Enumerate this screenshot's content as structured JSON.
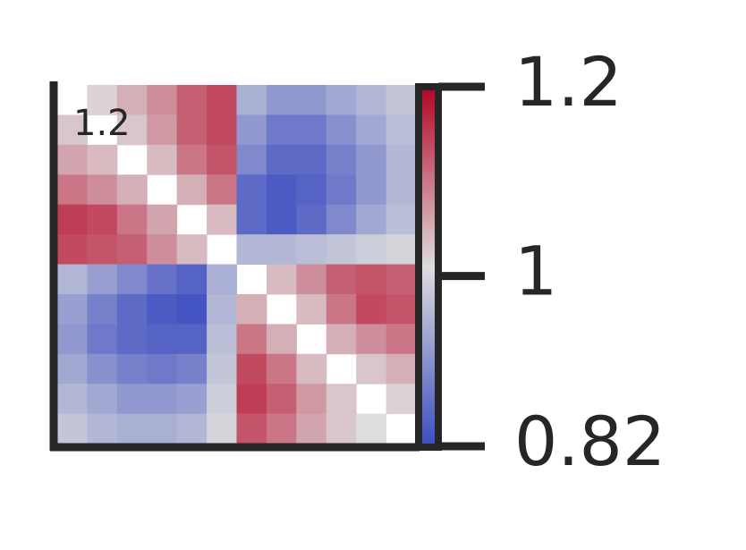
{
  "chart_data": {
    "type": "heatmap",
    "annotation": "1.2",
    "values": [
      [
        null,
        1.02,
        1.05,
        1.08,
        1.12,
        1.14,
        0.95,
        0.92,
        0.92,
        0.94,
        0.96,
        0.98
      ],
      [
        1.03,
        null,
        1.03,
        1.07,
        1.12,
        1.14,
        0.92,
        0.88,
        0.88,
        0.91,
        0.94,
        0.97
      ],
      [
        1.06,
        1.04,
        null,
        1.04,
        1.1,
        1.13,
        0.9,
        0.86,
        0.86,
        0.89,
        0.92,
        0.96
      ],
      [
        1.1,
        1.08,
        1.05,
        null,
        1.05,
        1.1,
        0.86,
        0.84,
        0.85,
        0.88,
        0.92,
        0.96
      ],
      [
        1.15,
        1.14,
        1.1,
        1.06,
        null,
        1.04,
        0.86,
        0.84,
        0.86,
        0.9,
        0.94,
        0.97
      ],
      [
        1.14,
        1.13,
        1.12,
        1.08,
        1.04,
        null,
        0.96,
        0.96,
        0.97,
        0.98,
        0.99,
        1.0
      ],
      [
        0.96,
        0.93,
        0.9,
        0.87,
        0.85,
        0.95,
        null,
        1.04,
        1.08,
        1.12,
        1.13,
        1.12
      ],
      [
        0.93,
        0.89,
        0.86,
        0.84,
        0.83,
        0.96,
        1.05,
        null,
        1.04,
        1.1,
        1.14,
        1.13
      ],
      [
        0.92,
        0.88,
        0.86,
        0.85,
        0.85,
        0.97,
        1.1,
        1.05,
        null,
        1.05,
        1.08,
        1.1
      ],
      [
        0.94,
        0.91,
        0.89,
        0.88,
        0.89,
        0.98,
        1.14,
        1.1,
        1.04,
        null,
        1.03,
        1.05
      ],
      [
        0.96,
        0.94,
        0.92,
        0.92,
        0.93,
        0.99,
        1.15,
        1.12,
        1.07,
        1.03,
        null,
        1.02
      ],
      [
        0.98,
        0.96,
        0.95,
        0.95,
        0.96,
        1.0,
        1.13,
        1.1,
        1.06,
        1.03,
        1.01,
        null
      ]
    ],
    "colormap": [
      "#3b4cc0",
      "#dddddd",
      "#b40426"
    ],
    "colorbar": {
      "lim": [
        0.82,
        1.2
      ],
      "ticks": [
        1.2,
        1,
        0.82
      ]
    }
  }
}
